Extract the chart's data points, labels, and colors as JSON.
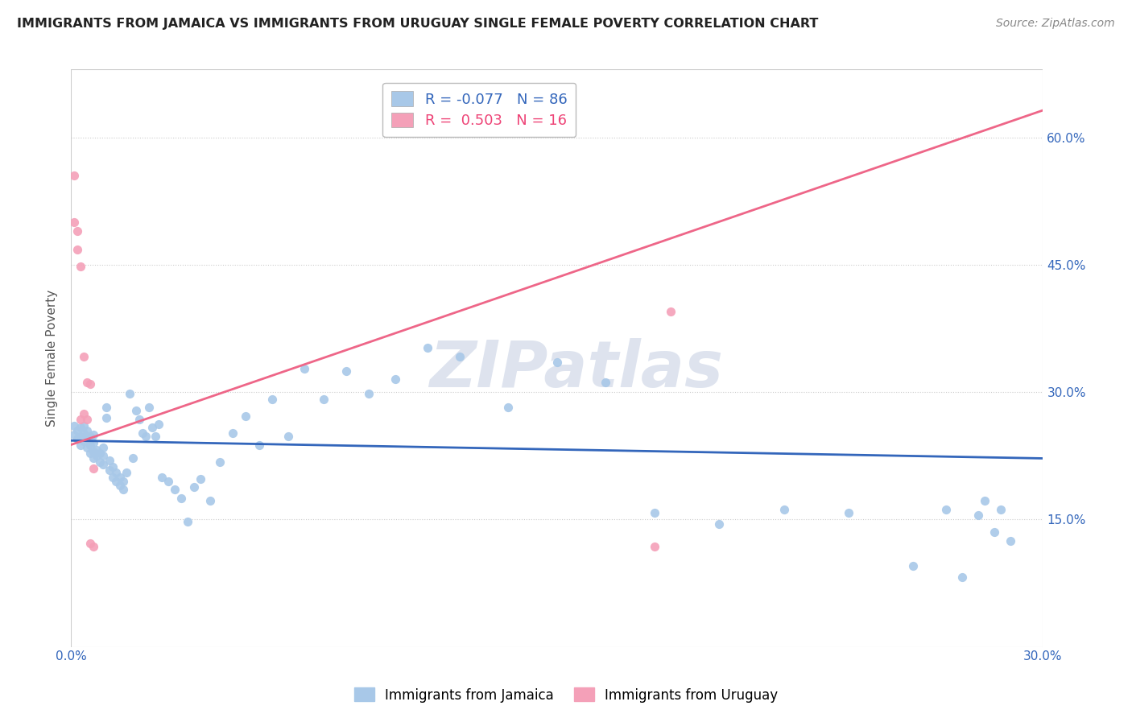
{
  "title": "IMMIGRANTS FROM JAMAICA VS IMMIGRANTS FROM URUGUAY SINGLE FEMALE POVERTY CORRELATION CHART",
  "source": "Source: ZipAtlas.com",
  "xlabel": "",
  "ylabel": "Single Female Poverty",
  "xlim": [
    0.0,
    0.3
  ],
  "ylim": [
    0.0,
    0.68
  ],
  "right_yticks": [
    0.15,
    0.3,
    0.45,
    0.6
  ],
  "right_yticklabels": [
    "15.0%",
    "30.0%",
    "45.0%",
    "60.0%"
  ],
  "bottom_xticks": [
    0.0,
    0.05,
    0.1,
    0.15,
    0.2,
    0.25,
    0.3
  ],
  "bottom_xticklabels": [
    "0.0%",
    "",
    "",
    "",
    "",
    "",
    "30.0%"
  ],
  "jamaica_color": "#a8c8e8",
  "uruguay_color": "#f4a0b8",
  "jamaica_line_color": "#3366bb",
  "uruguay_line_color": "#ee6688",
  "jamaica_R": -0.077,
  "jamaica_N": 86,
  "uruguay_R": 0.503,
  "uruguay_N": 16,
  "legend_jamaica_label": "Immigrants from Jamaica",
  "legend_uruguay_label": "Immigrants from Uruguay",
  "watermark": "ZIPatlas",
  "jamaica_x": [
    0.001,
    0.001,
    0.002,
    0.002,
    0.003,
    0.003,
    0.003,
    0.004,
    0.004,
    0.004,
    0.005,
    0.005,
    0.005,
    0.006,
    0.006,
    0.006,
    0.007,
    0.007,
    0.007,
    0.007,
    0.008,
    0.008,
    0.009,
    0.009,
    0.01,
    0.01,
    0.01,
    0.011,
    0.011,
    0.012,
    0.012,
    0.013,
    0.013,
    0.014,
    0.014,
    0.015,
    0.015,
    0.016,
    0.016,
    0.017,
    0.018,
    0.019,
    0.02,
    0.021,
    0.022,
    0.023,
    0.024,
    0.025,
    0.026,
    0.027,
    0.028,
    0.03,
    0.032,
    0.034,
    0.036,
    0.038,
    0.04,
    0.043,
    0.046,
    0.05,
    0.054,
    0.058,
    0.062,
    0.067,
    0.072,
    0.078,
    0.085,
    0.092,
    0.1,
    0.11,
    0.12,
    0.135,
    0.15,
    0.165,
    0.18,
    0.2,
    0.22,
    0.24,
    0.26,
    0.27,
    0.275,
    0.28,
    0.282,
    0.285,
    0.287,
    0.29
  ],
  "jamaica_y": [
    0.25,
    0.26,
    0.245,
    0.255,
    0.238,
    0.248,
    0.258,
    0.242,
    0.252,
    0.26,
    0.235,
    0.245,
    0.255,
    0.228,
    0.238,
    0.248,
    0.222,
    0.23,
    0.24,
    0.25,
    0.225,
    0.232,
    0.218,
    0.228,
    0.215,
    0.225,
    0.235,
    0.27,
    0.282,
    0.208,
    0.22,
    0.2,
    0.212,
    0.195,
    0.205,
    0.19,
    0.2,
    0.185,
    0.195,
    0.205,
    0.298,
    0.222,
    0.278,
    0.268,
    0.252,
    0.248,
    0.282,
    0.258,
    0.248,
    0.262,
    0.2,
    0.195,
    0.185,
    0.175,
    0.148,
    0.188,
    0.198,
    0.172,
    0.218,
    0.252,
    0.272,
    0.238,
    0.292,
    0.248,
    0.328,
    0.292,
    0.325,
    0.298,
    0.315,
    0.352,
    0.342,
    0.282,
    0.335,
    0.312,
    0.158,
    0.145,
    0.162,
    0.158,
    0.095,
    0.162,
    0.082,
    0.155,
    0.172,
    0.135,
    0.162,
    0.125
  ],
  "uruguay_x": [
    0.001,
    0.001,
    0.002,
    0.002,
    0.003,
    0.003,
    0.004,
    0.004,
    0.005,
    0.005,
    0.006,
    0.006,
    0.007,
    0.007,
    0.18,
    0.185
  ],
  "uruguay_y": [
    0.555,
    0.5,
    0.468,
    0.49,
    0.448,
    0.268,
    0.275,
    0.342,
    0.312,
    0.268,
    0.122,
    0.31,
    0.118,
    0.21,
    0.118,
    0.395
  ],
  "jamaica_line_x0": 0.0,
  "jamaica_line_x1": 0.3,
  "jamaica_line_y0": 0.243,
  "jamaica_line_y1": 0.222,
  "uruguay_line_x0": 0.0,
  "uruguay_line_x1": 0.3,
  "uruguay_line_y0": 0.238,
  "uruguay_line_y1": 0.632
}
